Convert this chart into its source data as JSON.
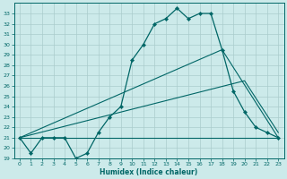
{
  "xlabel": "Humidex (Indice chaleur)",
  "bg_color": "#cceaea",
  "grid_color": "#aacccc",
  "line_color": "#006666",
  "xlim": [
    -0.5,
    23.5
  ],
  "ylim": [
    19,
    34
  ],
  "xticks": [
    0,
    1,
    2,
    3,
    4,
    5,
    6,
    7,
    8,
    9,
    10,
    11,
    12,
    13,
    14,
    15,
    16,
    17,
    18,
    19,
    20,
    21,
    22,
    23
  ],
  "yticks": [
    19,
    20,
    21,
    22,
    23,
    24,
    25,
    26,
    27,
    28,
    29,
    30,
    31,
    32,
    33
  ],
  "curve1_x": [
    0,
    1,
    2,
    3,
    4,
    5,
    6,
    7,
    8,
    9,
    10,
    11,
    12,
    13,
    14,
    15,
    16,
    17,
    18,
    19,
    20,
    21,
    22,
    23
  ],
  "curve1_y": [
    21.0,
    19.5,
    21.0,
    21.0,
    21.0,
    19.0,
    19.5,
    21.5,
    23.0,
    24.0,
    28.5,
    30.0,
    32.0,
    32.5,
    33.5,
    32.5,
    33.0,
    33.0,
    29.5,
    25.5,
    23.5,
    22.0,
    21.5,
    21.0
  ],
  "curve2_x": [
    0,
    18,
    23
  ],
  "curve2_y": [
    21.0,
    29.5,
    21.0
  ],
  "curve3_x": [
    0,
    20,
    23
  ],
  "curve3_y": [
    21.0,
    26.5,
    21.5
  ],
  "curve4_x": [
    0,
    9,
    23
  ],
  "curve4_y": [
    21.0,
    21.0,
    21.0
  ]
}
